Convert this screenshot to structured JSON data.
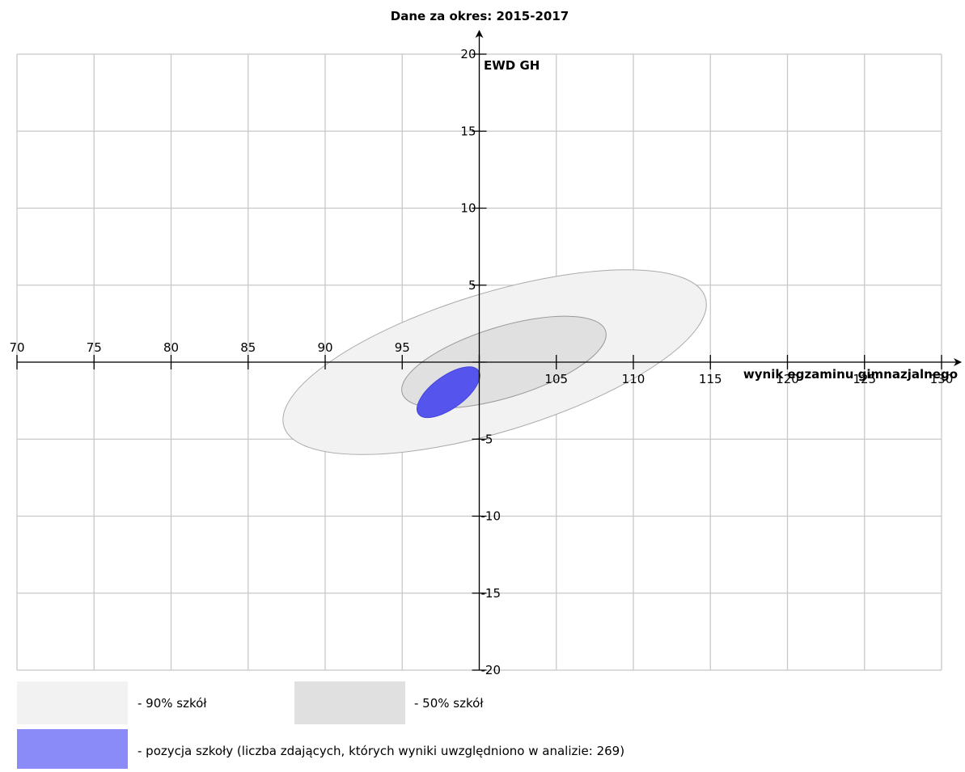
{
  "chart_data": {
    "type": "scatter",
    "title": "Dane za okres: 2015-2017",
    "xlabel": "wynik egzaminu gimnazjalnego",
    "ylabel": "EWD GH",
    "xlim": [
      70,
      130
    ],
    "ylim": [
      -20,
      20
    ],
    "x_ticks": [
      70,
      75,
      80,
      85,
      90,
      95,
      100,
      105,
      110,
      115,
      120,
      125,
      130
    ],
    "x_tick_labels": [
      "70",
      "75",
      "80",
      "85",
      "90",
      "95",
      "",
      "105",
      "110",
      "115",
      "120",
      "125",
      "130"
    ],
    "y_ticks": [
      -20,
      -15,
      -10,
      -5,
      0,
      5,
      10,
      15,
      20
    ],
    "y_tick_labels": [
      "-20",
      "-15",
      "-10",
      "-5",
      "",
      "5",
      "10",
      "15",
      "20"
    ],
    "grid": true,
    "regions": [
      {
        "key": "90",
        "center_x": 101.0,
        "center_y": 0.0,
        "semi_major": 14.3,
        "semi_minor": 4.5,
        "angle_deg": 17,
        "color": "#f2f2f2",
        "stroke": "#aaaaaa"
      },
      {
        "key": "50",
        "center_x": 101.6,
        "center_y": 0.0,
        "semi_major": 6.9,
        "semi_minor": 2.3,
        "angle_deg": 17,
        "color": "#e0e0e0",
        "stroke": "#999999"
      },
      {
        "key": "school",
        "center_x": 98.0,
        "center_y": -1.95,
        "semi_major": 2.4,
        "semi_minor": 1.05,
        "angle_deg": 36,
        "color": "#5555ee",
        "stroke": "#4444dd"
      }
    ]
  },
  "legend": {
    "items": [
      {
        "label": "- 90% szkół",
        "color": "#f2f2f2"
      },
      {
        "label": "- 50% szkół",
        "color": "#e0e0e0"
      },
      {
        "label": "- pozycja szkoły (liczba zdających, których wyniki uwzględniono w analizie: 269)",
        "color": "#8a8af8"
      }
    ]
  }
}
